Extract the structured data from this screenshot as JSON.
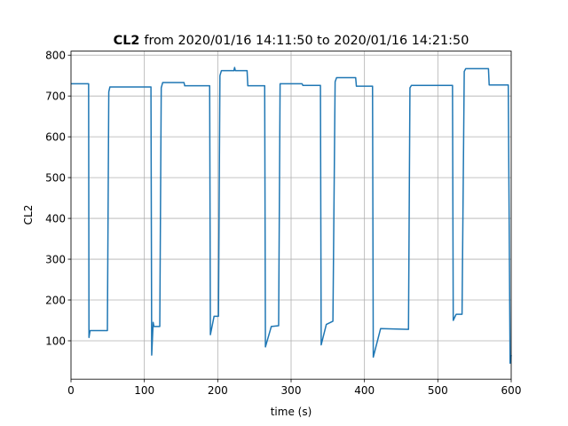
{
  "chart_data": {
    "type": "line",
    "title": {
      "bold": "CL2",
      "rest": "from 2020/01/16 14:11:50 to 2020/01/16 14:21:50"
    },
    "x_label": "time (s)",
    "y_label": "CL2",
    "x": [
      0,
      24,
      24.5,
      26,
      49.6,
      51.5,
      53,
      109,
      110,
      112,
      113,
      121,
      123,
      125,
      154,
      155,
      189,
      190,
      195,
      201,
      203,
      205,
      222,
      223,
      224,
      240,
      241,
      264,
      265,
      273,
      283,
      285,
      315,
      316,
      340,
      341,
      348,
      357,
      360,
      362,
      388,
      389,
      411,
      412,
      422,
      460,
      462,
      464,
      520,
      521,
      525,
      533,
      536,
      538,
      569,
      570,
      596,
      598.5,
      600
    ],
    "values": [
      730,
      730,
      108,
      125,
      125,
      710,
      722,
      722,
      65,
      145,
      135,
      135,
      720,
      733,
      733,
      725,
      725,
      115,
      160,
      160,
      750,
      762,
      762,
      770,
      762,
      762,
      725,
      725,
      85,
      135,
      137,
      730,
      730,
      726,
      726,
      90,
      140,
      148,
      735,
      745,
      745,
      724,
      724,
      60,
      130,
      128,
      720,
      726,
      726,
      150,
      165,
      165,
      760,
      767,
      767,
      727,
      727,
      45,
      65
    ],
    "color": "#1f77b4",
    "xlim": [
      0,
      600
    ],
    "ylim": [
      6,
      810
    ],
    "xticks": [
      0,
      100,
      200,
      300,
      400,
      500,
      600
    ],
    "yticks": [
      100,
      200,
      300,
      400,
      500,
      600,
      700,
      800
    ],
    "grid": true
  }
}
